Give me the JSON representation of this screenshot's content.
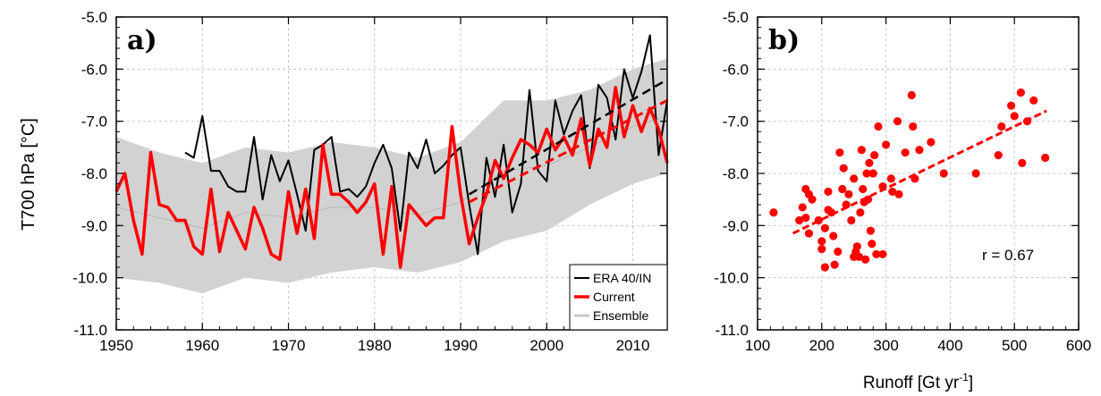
{
  "figure": {
    "ylabel": "T700 hPa [°C]"
  },
  "chart_data": [
    {
      "panel": "a)",
      "type": "line",
      "xlim": [
        1950,
        2014
      ],
      "ylim": [
        -11.0,
        -5.0
      ],
      "grid": true,
      "x_ticks": [
        1950,
        1960,
        1970,
        1980,
        1990,
        2000,
        2010
      ],
      "y_ticks": [
        "-5.0",
        "-6.0",
        "-7.0",
        "-8.0",
        "-9.0",
        "-10.0",
        "-11.0"
      ],
      "y_tick_values": [
        -5,
        -6,
        -7,
        -8,
        -9,
        -10,
        -11
      ],
      "legend_position": "bottom-right",
      "legend": [
        "ERA 40/IN",
        "Current",
        "Ensemble"
      ],
      "series": [
        {
          "name": "ERA 40/IN",
          "color": "#000000",
          "x": [
            1958,
            1959,
            1960,
            1961,
            1962,
            1963,
            1964,
            1965,
            1966,
            1967,
            1968,
            1969,
            1970,
            1971,
            1972,
            1973,
            1974,
            1975,
            1976,
            1977,
            1978,
            1979,
            1980,
            1981,
            1982,
            1983,
            1984,
            1985,
            1986,
            1987,
            1988,
            1989,
            1990,
            1991,
            1992,
            1993,
            1994,
            1995,
            1996,
            1997,
            1998,
            1999,
            2000,
            2001,
            2002,
            2003,
            2004,
            2005,
            2006,
            2007,
            2008,
            2009,
            2010,
            2011,
            2012,
            2013,
            2014
          ],
          "values": [
            -7.6,
            -7.7,
            -6.9,
            -7.95,
            -7.95,
            -8.25,
            -8.35,
            -8.35,
            -7.3,
            -8.5,
            -7.65,
            -8.15,
            -7.75,
            -8.4,
            -9.1,
            -7.55,
            -7.45,
            -7.3,
            -8.35,
            -8.3,
            -8.45,
            -8.25,
            -7.8,
            -7.45,
            -7.9,
            -9.1,
            -7.6,
            -7.9,
            -7.35,
            -8.0,
            -7.85,
            -7.65,
            -7.5,
            -8.6,
            -9.55,
            -7.7,
            -8.45,
            -7.45,
            -8.75,
            -8.2,
            -6.4,
            -7.95,
            -8.15,
            -6.6,
            -7.25,
            -6.8,
            -6.5,
            -7.9,
            -6.3,
            -6.55,
            -7.35,
            -6.0,
            -6.55,
            -6.05,
            -5.35,
            -7.65,
            -6.6
          ]
        },
        {
          "name": "Current",
          "color": "#ff0000",
          "x": [
            1950,
            1951,
            1952,
            1953,
            1954,
            1955,
            1956,
            1957,
            1958,
            1959,
            1960,
            1961,
            1962,
            1963,
            1964,
            1965,
            1966,
            1967,
            1968,
            1969,
            1970,
            1971,
            1972,
            1973,
            1974,
            1975,
            1976,
            1977,
            1978,
            1979,
            1980,
            1981,
            1982,
            1983,
            1984,
            1985,
            1986,
            1987,
            1988,
            1989,
            1990,
            1991,
            1992,
            1993,
            1994,
            1995,
            1996,
            1997,
            1998,
            1999,
            2000,
            2001,
            2002,
            2003,
            2004,
            2005,
            2006,
            2007,
            2008,
            2009,
            2010,
            2011,
            2012,
            2013,
            2014
          ],
          "values": [
            -8.35,
            -8.0,
            -8.9,
            -9.55,
            -7.6,
            -8.6,
            -8.65,
            -8.9,
            -8.9,
            -9.4,
            -9.55,
            -8.3,
            -9.5,
            -8.75,
            -9.1,
            -9.45,
            -8.65,
            -9.05,
            -9.55,
            -9.65,
            -8.35,
            -9.15,
            -8.3,
            -9.25,
            -7.45,
            -8.4,
            -8.4,
            -8.55,
            -8.75,
            -8.55,
            -8.2,
            -9.55,
            -8.25,
            -9.8,
            -8.6,
            -8.8,
            -9.0,
            -8.85,
            -8.85,
            -7.1,
            -8.4,
            -9.35,
            -8.85,
            -8.4,
            -7.75,
            -8.1,
            -7.7,
            -7.35,
            -7.45,
            -7.6,
            -7.15,
            -7.55,
            -7.3,
            -7.65,
            -6.95,
            -7.85,
            -7.15,
            -7.5,
            -6.35,
            -7.3,
            -6.7,
            -7.2,
            -6.75,
            -7.15,
            -7.8
          ]
        },
        {
          "name": "Ensemble",
          "color": "#c8c8c8",
          "x": [
            1950,
            1955,
            1960,
            1965,
            1970,
            1975,
            1980,
            1985,
            1990,
            1995,
            2000,
            2005,
            2010,
            2014
          ],
          "band_min": [
            -10.0,
            -10.1,
            -10.3,
            -10.0,
            -10.1,
            -9.9,
            -9.8,
            -9.9,
            -9.7,
            -9.3,
            -9.1,
            -8.6,
            -8.2,
            -8.0
          ],
          "band_max": [
            -7.3,
            -7.6,
            -7.8,
            -7.5,
            -7.6,
            -7.4,
            -7.5,
            -7.7,
            -7.4,
            -6.6,
            -6.6,
            -6.4,
            -6.0,
            -5.8
          ]
        },
        {
          "name": "",
          "color": "#000000",
          "style": "dashed",
          "x": [
            1991,
            2014
          ],
          "values": [
            -8.4,
            -6.2
          ]
        },
        {
          "name": "",
          "color": "#ff0000",
          "style": "dashed",
          "x": [
            1991,
            2014
          ],
          "values": [
            -8.55,
            -6.6
          ]
        }
      ]
    },
    {
      "panel": "b)",
      "type": "scatter",
      "xlabel_prefix": "Runoff [Gt yr",
      "xlabel_sup": "-1",
      "xlabel_suffix": "]",
      "xlim": [
        100,
        600
      ],
      "ylim": [
        -11.0,
        -5.0
      ],
      "grid": true,
      "x_ticks": [
        100,
        200,
        300,
        400,
        500,
        600
      ],
      "y_ticks": [
        "-5.0",
        "-6.0",
        "-7.0",
        "-8.0",
        "-9.0",
        "-10.0",
        "-11.0"
      ],
      "y_tick_values": [
        -5,
        -6,
        -7,
        -8,
        -9,
        -10,
        -11
      ],
      "annotation": "r = 0.67",
      "color": "#ff0000",
      "points": [
        [
          125,
          -8.75
        ],
        [
          165,
          -8.9
        ],
        [
          170,
          -8.65
        ],
        [
          175,
          -8.85
        ],
        [
          175,
          -8.3
        ],
        [
          180,
          -8.4
        ],
        [
          180,
          -9.15
        ],
        [
          185,
          -8.5
        ],
        [
          195,
          -8.9
        ],
        [
          200,
          -9.3
        ],
        [
          200,
          -9.45
        ],
        [
          205,
          -9.8
        ],
        [
          205,
          -9.05
        ],
        [
          210,
          -8.7
        ],
        [
          210,
          -8.35
        ],
        [
          215,
          -8.75
        ],
        [
          218,
          -9.2
        ],
        [
          220,
          -9.75
        ],
        [
          225,
          -9.5
        ],
        [
          228,
          -7.6
        ],
        [
          232,
          -8.3
        ],
        [
          234,
          -7.9
        ],
        [
          238,
          -8.6
        ],
        [
          242,
          -8.4
        ],
        [
          246,
          -8.9
        ],
        [
          250,
          -8.1
        ],
        [
          250,
          -9.6
        ],
        [
          253,
          -9.5
        ],
        [
          255,
          -9.4
        ],
        [
          258,
          -9.6
        ],
        [
          260,
          -8.75
        ],
        [
          262,
          -7.55
        ],
        [
          264,
          -8.3
        ],
        [
          266,
          -8.55
        ],
        [
          268,
          -9.65
        ],
        [
          270,
          -8.0
        ],
        [
          272,
          -8.5
        ],
        [
          274,
          -7.8
        ],
        [
          276,
          -9.1
        ],
        [
          278,
          -9.35
        ],
        [
          280,
          -8.0
        ],
        [
          282,
          -7.65
        ],
        [
          285,
          -9.55
        ],
        [
          288,
          -7.1
        ],
        [
          295,
          -8.25
        ],
        [
          295,
          -9.55
        ],
        [
          300,
          -7.45
        ],
        [
          308,
          -8.1
        ],
        [
          310,
          -8.35
        ],
        [
          318,
          -7.0
        ],
        [
          320,
          -8.4
        ],
        [
          330,
          -7.6
        ],
        [
          340,
          -6.5
        ],
        [
          342,
          -7.1
        ],
        [
          345,
          -8.1
        ],
        [
          352,
          -7.55
        ],
        [
          370,
          -7.4
        ],
        [
          390,
          -8.0
        ],
        [
          440,
          -8.0
        ],
        [
          475,
          -7.65
        ],
        [
          480,
          -7.1
        ],
        [
          495,
          -6.7
        ],
        [
          500,
          -6.9
        ],
        [
          510,
          -6.45
        ],
        [
          512,
          -7.8
        ],
        [
          520,
          -7.0
        ],
        [
          530,
          -6.6
        ],
        [
          548,
          -7.7
        ]
      ],
      "fit": {
        "x": [
          155,
          550
        ],
        "y": [
          -9.15,
          -6.8
        ]
      }
    }
  ]
}
